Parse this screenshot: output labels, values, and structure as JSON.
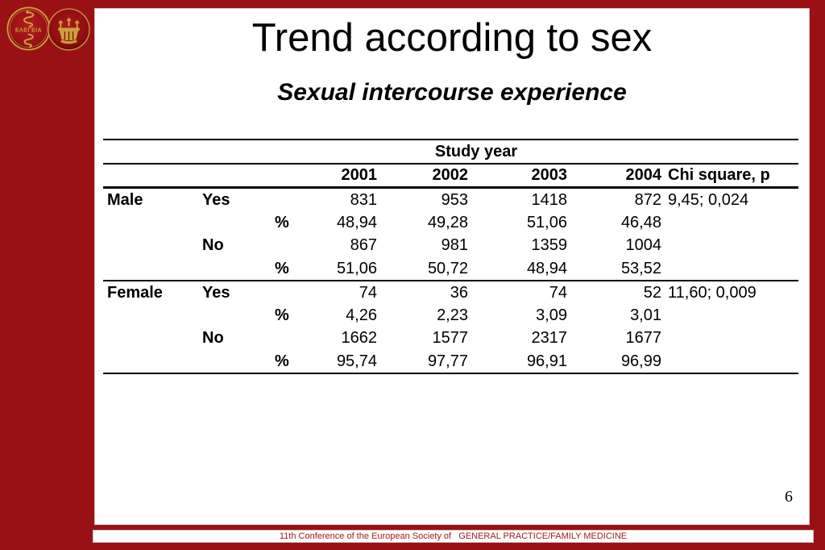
{
  "slide": {
    "title": "Trend according to sex",
    "subtitle": "Sexual intercourse experience",
    "page_number": "6",
    "footer": "11th Conference of the European Society of   GENERAL PRACTICE/FAMILY MEDICINE"
  },
  "logos": {
    "elegeia_text": "ΕΛΕΓΕΙΑ"
  },
  "table": {
    "group_header": "Study year",
    "columns": [
      "2001",
      "2002",
      "2003",
      "2004"
    ],
    "chi_header": "Chi square, p",
    "rows": [
      {
        "sex": "Male",
        "answer": "Yes",
        "pct": "",
        "v": [
          "831",
          "953",
          "1418",
          "872"
        ],
        "chi": "9,45; 0,024"
      },
      {
        "sex": "",
        "answer": "",
        "pct": "%",
        "v": [
          "48,94",
          "49,28",
          "51,06",
          "46,48"
        ],
        "chi": ""
      },
      {
        "sex": "",
        "answer": "No",
        "pct": "",
        "v": [
          "867",
          "981",
          "1359",
          "1004"
        ],
        "chi": ""
      },
      {
        "sex": "",
        "answer": "",
        "pct": "%",
        "v": [
          "51,06",
          "50,72",
          "48,94",
          "53,52"
        ],
        "chi": ""
      },
      {
        "sex": "Female",
        "answer": "Yes",
        "pct": "",
        "v": [
          "74",
          "36",
          "74",
          "52"
        ],
        "chi": "11,60; 0,009"
      },
      {
        "sex": "",
        "answer": "",
        "pct": "%",
        "v": [
          "4,26",
          "2,23",
          "3,09",
          "3,01"
        ],
        "chi": ""
      },
      {
        "sex": "",
        "answer": "No",
        "pct": "",
        "v": [
          "1662",
          "1577",
          "2317",
          "1677"
        ],
        "chi": ""
      },
      {
        "sex": "",
        "answer": "",
        "pct": "%",
        "v": [
          "95,74",
          "97,77",
          "96,91",
          "96,99"
        ],
        "chi": ""
      }
    ]
  },
  "colors": {
    "background_red": "#9A1115",
    "footer_text_red": "#A32024",
    "logo_gold": "#C9A13B",
    "table_text": "#000000"
  }
}
